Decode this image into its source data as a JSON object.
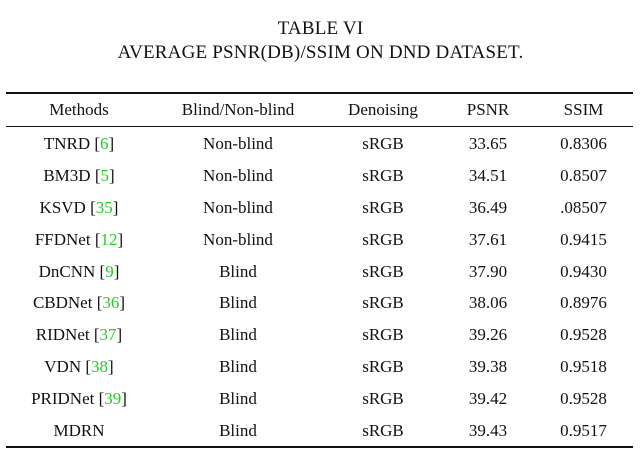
{
  "caption": {
    "label": "TABLE VI",
    "title": "AVERAGE PSNR(DB)/SSIM ON DND DATASET."
  },
  "table": {
    "headers": [
      "Methods",
      "Blind/Non-blind",
      "Denoising",
      "PSNR",
      "SSIM"
    ],
    "rows": [
      {
        "method": "TNRD",
        "ref": "6",
        "blind": "Non-blind",
        "denoising": "sRGB",
        "psnr": "33.65",
        "ssim": "0.8306",
        "psnr_bold": false,
        "ssim_bold": false
      },
      {
        "method": "BM3D",
        "ref": "5",
        "blind": "Non-blind",
        "denoising": "sRGB",
        "psnr": "34.51",
        "ssim": "0.8507",
        "psnr_bold": false,
        "ssim_bold": false
      },
      {
        "method": "KSVD",
        "ref": "35",
        "blind": "Non-blind",
        "denoising": "sRGB",
        "psnr": "36.49",
        "ssim": ".08507",
        "psnr_bold": false,
        "ssim_bold": false
      },
      {
        "method": "FFDNet",
        "ref": "12",
        "blind": "Non-blind",
        "denoising": "sRGB",
        "psnr": "37.61",
        "ssim": "0.9415",
        "psnr_bold": false,
        "ssim_bold": false
      },
      {
        "method": "DnCNN",
        "ref": "9",
        "blind": "Blind",
        "denoising": "sRGB",
        "psnr": "37.90",
        "ssim": "0.9430",
        "psnr_bold": false,
        "ssim_bold": false
      },
      {
        "method": "CBDNet",
        "ref": "36",
        "blind": "Blind",
        "denoising": "sRGB",
        "psnr": "38.06",
        "ssim": "0.8976",
        "psnr_bold": false,
        "ssim_bold": false
      },
      {
        "method": "RIDNet",
        "ref": "37",
        "blind": "Blind",
        "denoising": "sRGB",
        "psnr": "39.26",
        "ssim": "0.9528",
        "psnr_bold": false,
        "ssim_bold": true
      },
      {
        "method": "VDN",
        "ref": "38",
        "blind": "Blind",
        "denoising": "sRGB",
        "psnr": "39.38",
        "ssim": "0.9518",
        "psnr_bold": false,
        "ssim_bold": false
      },
      {
        "method": "PRIDNet",
        "ref": "39",
        "blind": "Blind",
        "denoising": "sRGB",
        "psnr": "39.42",
        "ssim": "0.9528",
        "psnr_bold": false,
        "ssim_bold": true
      },
      {
        "method": "MDRN",
        "ref": "",
        "blind": "Blind",
        "denoising": "sRGB",
        "psnr": "39.43",
        "ssim": "0.9517",
        "psnr_bold": true,
        "ssim_bold": false
      }
    ]
  },
  "colors": {
    "reference_link": "#22cc22",
    "text": "#111111"
  }
}
